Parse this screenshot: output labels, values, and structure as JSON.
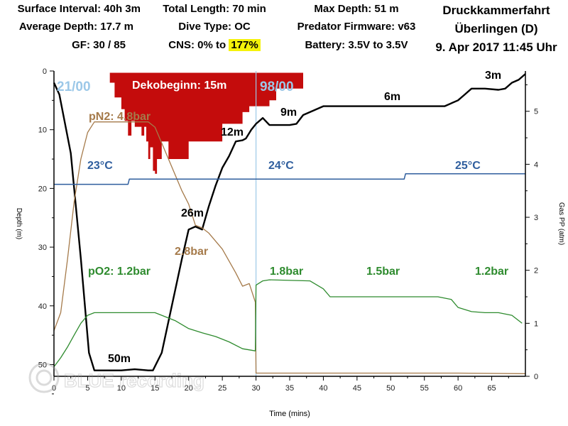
{
  "header": {
    "surface_interval": "Surface Interval: 40h 3m",
    "average_depth": "Average Depth: 17.7 m",
    "gf": "GF: 30 / 85",
    "total_length": "Total Length: 70 min",
    "dive_type": "Dive Type: OC",
    "cns_prefix": "CNS: 0% to ",
    "cns_value": "177%",
    "max_depth": "Max Depth: 51 m",
    "firmware": "Predator Firmware: v63",
    "battery": "Battery: 3.5V to 3.5V",
    "title_line1": "Druckkammerfahrt",
    "title_line2": "Überlingen (D)",
    "title_line3": "9. Apr 2017  11:45 Uhr"
  },
  "watermark": "BLUE recording",
  "colors": {
    "depth": "#000000",
    "deco": "#c40c0c",
    "pn2": "#a57a4a",
    "po2": "#2e8b2e",
    "temp": "#2f5e9e",
    "gas_switch": "#9cc8e8",
    "highlight": "#f5f20a"
  },
  "chart_data": {
    "type": "line",
    "xlabel": "Time (mins)",
    "ylabel_left": "Depth (m)",
    "ylabel_right": "Gas PP (atm)",
    "xlim": [
      0,
      70
    ],
    "ylim_left": [
      0,
      52
    ],
    "ylim_right": [
      0,
      5.76
    ],
    "x_ticks": [
      0,
      5,
      10,
      15,
      20,
      25,
      30,
      35,
      40,
      45,
      50,
      55,
      60,
      65
    ],
    "y_left_ticks": [
      0,
      10,
      20,
      30,
      40,
      50
    ],
    "y_right_ticks": [
      0,
      1,
      2,
      3,
      4,
      5
    ],
    "series": [
      {
        "name": "Depth",
        "x": [
          0,
          0.8,
          2.5,
          4,
          5.2,
          6,
          8,
          10,
          12,
          14,
          14.7,
          16,
          17.5,
          19,
          20,
          21,
          22,
          23,
          24,
          25,
          26,
          27,
          28,
          28.5,
          29.3,
          30,
          31,
          32,
          35,
          36,
          37,
          38,
          40,
          41,
          45,
          50,
          55,
          58,
          60,
          61,
          62,
          64,
          66,
          67,
          68,
          69,
          70
        ],
        "y": [
          2,
          4,
          14,
          32,
          48,
          51,
          51,
          51,
          50.8,
          51,
          51,
          48,
          40,
          32,
          27,
          26.5,
          27,
          23,
          19.5,
          16.5,
          14.5,
          12,
          11.8,
          11.5,
          10,
          9,
          8,
          9.2,
          9.2,
          9,
          7.5,
          7,
          6,
          6,
          6,
          6,
          6,
          6,
          5,
          4,
          3,
          3,
          3.2,
          3,
          2,
          1.5,
          0.5
        ]
      },
      {
        "name": "pN2",
        "x": [
          0,
          1,
          2,
          3,
          4,
          5,
          6,
          8,
          10,
          12,
          14,
          15,
          16,
          18,
          19,
          20,
          21,
          22,
          23,
          25,
          27,
          28,
          29,
          29.9,
          30,
          31,
          40,
          50,
          60,
          70
        ],
        "y": [
          0.86,
          1.2,
          2.2,
          3.3,
          4.1,
          4.6,
          4.8,
          4.8,
          4.8,
          4.8,
          4.8,
          4.7,
          4.4,
          3.8,
          3.5,
          3.25,
          2.85,
          2.8,
          2.7,
          2.4,
          1.95,
          1.7,
          1.75,
          1.4,
          0.06,
          0.06,
          0.06,
          0.06,
          0.06,
          0.05
        ]
      },
      {
        "name": "pO2",
        "x": [
          0,
          1,
          2,
          3,
          4,
          5,
          6,
          8,
          10,
          12,
          14,
          15,
          16,
          18,
          20,
          22,
          24,
          26,
          28,
          29.9,
          30,
          31,
          32,
          38,
          40,
          41,
          43,
          50,
          57,
          59,
          60,
          62,
          64,
          66,
          68,
          69.5
        ],
        "y": [
          0.18,
          0.35,
          0.55,
          0.78,
          1.0,
          1.15,
          1.2,
          1.2,
          1.2,
          1.2,
          1.2,
          1.2,
          1.15,
          1.05,
          0.9,
          0.82,
          0.75,
          0.65,
          0.52,
          0.48,
          1.72,
          1.8,
          1.82,
          1.8,
          1.65,
          1.5,
          1.5,
          1.5,
          1.5,
          1.45,
          1.3,
          1.22,
          1.2,
          1.2,
          1.15,
          1.0
        ]
      },
      {
        "name": "Temperature",
        "x": [
          0,
          11,
          11.2,
          52,
          52.2,
          70
        ],
        "y": [
          19.3,
          19.3,
          18.4,
          18.4,
          17.5,
          17.5
        ]
      }
    ],
    "deco_profile": {
      "x": [
        8,
        8.3,
        9,
        10,
        10.5,
        11,
        11.5,
        12,
        13,
        13.4,
        13.7,
        14,
        14.3,
        14.7,
        15,
        15.3,
        16,
        17,
        18,
        19,
        20,
        21,
        23,
        25,
        27,
        28,
        29,
        30,
        31,
        32,
        33,
        35,
        37
      ],
      "y": [
        0.3,
        2.0,
        4.5,
        6.5,
        8.5,
        11,
        8.5,
        9.5,
        11,
        9.5,
        12,
        15,
        13,
        17,
        17.5,
        15,
        12,
        15,
        15,
        15,
        12,
        12,
        12,
        9,
        9,
        7,
        6,
        6,
        6,
        5,
        3,
        3,
        3
      ],
      "depth_top": 0.3
    },
    "annotations": {
      "deco_start": "Dekobeginn: 15m",
      "gas_start": "21/00",
      "gas_switch": "98/00",
      "depth_labels": [
        "50m",
        "26m",
        "12m",
        "9m",
        "6m",
        "3m"
      ],
      "pn2_labels": [
        "pN2: 4.8bar",
        "2.8bar"
      ],
      "po2_labels": [
        "pO2: 1.2bar",
        "1.8bar",
        "1.5bar",
        "1.2bar"
      ],
      "temp_labels": [
        "23°C",
        "24°C",
        "25°C"
      ]
    },
    "gas_switch_time": 30,
    "grid": false
  }
}
